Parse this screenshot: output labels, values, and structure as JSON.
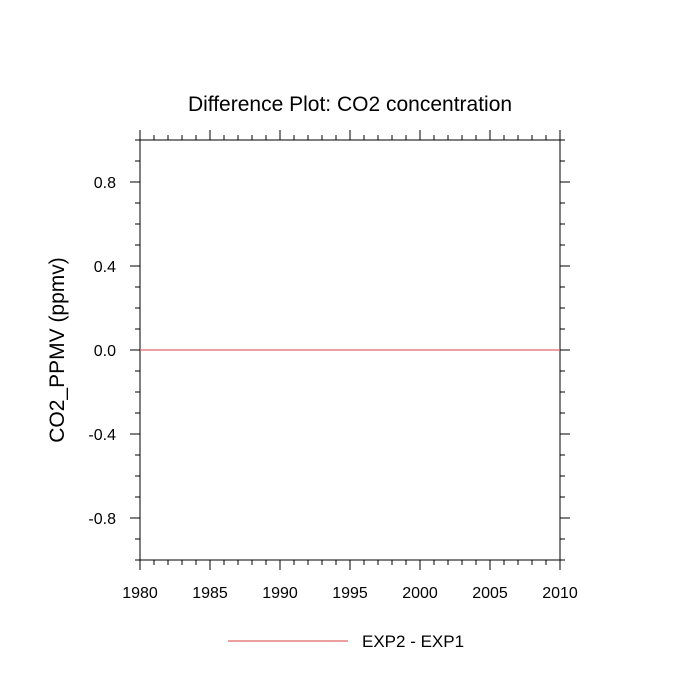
{
  "chart_data": {
    "type": "line",
    "title": "Difference Plot: CO2 concentration",
    "xlabel": "",
    "ylabel": "CO2_PPMV  (ppmv)",
    "xlim": [
      1980,
      2010
    ],
    "ylim": [
      -1,
      1
    ],
    "x_ticks": [
      1980,
      1985,
      1990,
      1995,
      2000,
      2005,
      2010
    ],
    "x_tick_labels": [
      "1980",
      "1985",
      "1990",
      "1995",
      "2000",
      "2005",
      "2010"
    ],
    "y_ticks": [
      0.8,
      0.4,
      0.0,
      -0.4,
      -0.8
    ],
    "y_tick_labels": [
      "0.8",
      "0.4",
      "0.0",
      "-0.4",
      "-0.8"
    ],
    "grid": false,
    "legend_position": "bottom-center",
    "series": [
      {
        "name": "EXP2 - EXP1",
        "color": "#e06666",
        "x": [
          1980,
          2010
        ],
        "y": [
          0.0,
          0.0
        ]
      }
    ]
  }
}
